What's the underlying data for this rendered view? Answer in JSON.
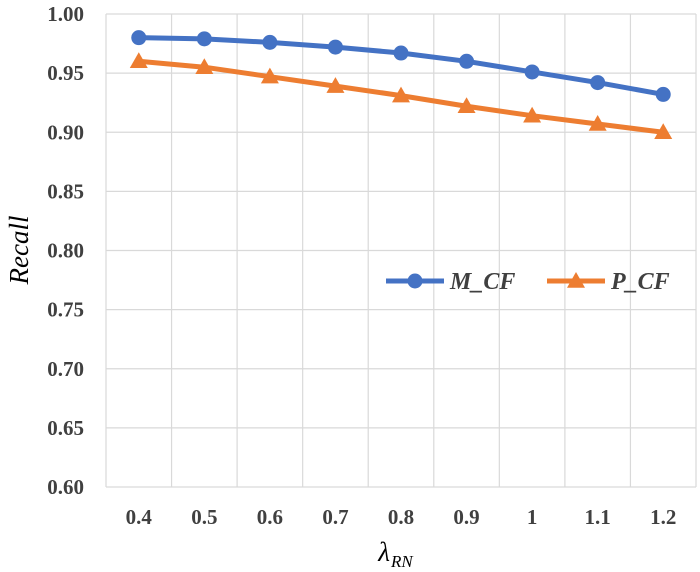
{
  "chart_data": {
    "type": "line",
    "title": "",
    "xlabel": {
      "main": "λ",
      "sub": "RN"
    },
    "ylabel": "Recall",
    "categories": [
      "0.4",
      "0.5",
      "0.6",
      "0.7",
      "0.8",
      "0.9",
      "1",
      "1.1",
      "1.2"
    ],
    "ylim": [
      0.6,
      1.0
    ],
    "yticks": [
      "0.60",
      "0.65",
      "0.70",
      "0.75",
      "0.80",
      "0.85",
      "0.90",
      "0.95",
      "1.00"
    ],
    "grid": true,
    "legend_position": "right-middle",
    "series": [
      {
        "name": "M_CF",
        "color": "#4472C4",
        "marker": "circle",
        "values": [
          0.98,
          0.979,
          0.976,
          0.972,
          0.967,
          0.96,
          0.951,
          0.942,
          0.932
        ]
      },
      {
        "name": "P_CF",
        "color": "#ED7D31",
        "marker": "triangle",
        "values": [
          0.96,
          0.955,
          0.947,
          0.939,
          0.931,
          0.922,
          0.914,
          0.907,
          0.9
        ]
      }
    ]
  }
}
